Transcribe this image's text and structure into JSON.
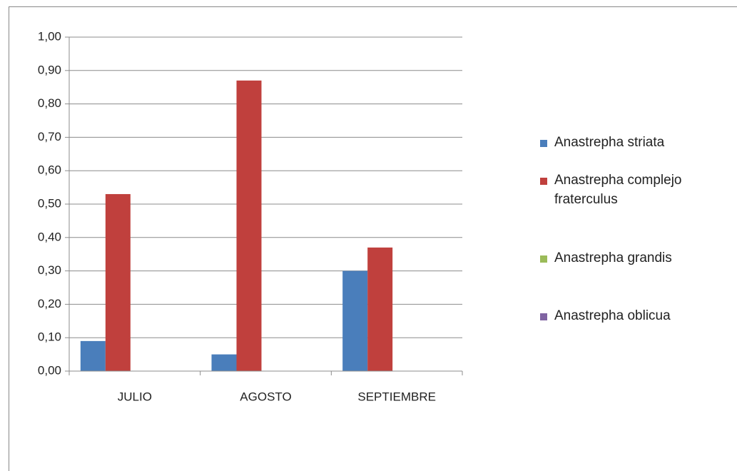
{
  "chart_data": {
    "type": "bar",
    "categories": [
      "JULIO",
      "AGOSTO",
      "SEPTIEMBRE"
    ],
    "series": [
      {
        "name": "Anastrepha striata",
        "color": "#4a7ebb",
        "values": [
          0.09,
          0.05,
          0.3
        ]
      },
      {
        "name": "Anastrepha complejo fraterculus",
        "color": "#c0403d",
        "values": [
          0.53,
          0.87,
          0.37
        ]
      },
      {
        "name": "Anastrepha grandis",
        "color": "#9bbb59",
        "values": [
          0,
          0,
          0
        ]
      },
      {
        "name": "Anastrepha oblicua",
        "color": "#8064a2",
        "values": [
          0,
          0,
          0
        ]
      }
    ],
    "ylim": [
      0,
      1
    ],
    "yticks": [
      {
        "value": 0,
        "label": "0,00"
      },
      {
        "value": 0.1,
        "label": "0,10"
      },
      {
        "value": 0.2,
        "label": "0,20"
      },
      {
        "value": 0.3,
        "label": "0,30"
      },
      {
        "value": 0.4,
        "label": "0,40"
      },
      {
        "value": 0.5,
        "label": "0,50"
      },
      {
        "value": 0.6,
        "label": "0,60"
      },
      {
        "value": 0.7,
        "label": "0,70"
      },
      {
        "value": 0.8,
        "label": "0,80"
      },
      {
        "value": 0.9,
        "label": "0,90"
      },
      {
        "value": 1,
        "label": "1,00"
      }
    ],
    "grid": true,
    "legend": "right"
  }
}
